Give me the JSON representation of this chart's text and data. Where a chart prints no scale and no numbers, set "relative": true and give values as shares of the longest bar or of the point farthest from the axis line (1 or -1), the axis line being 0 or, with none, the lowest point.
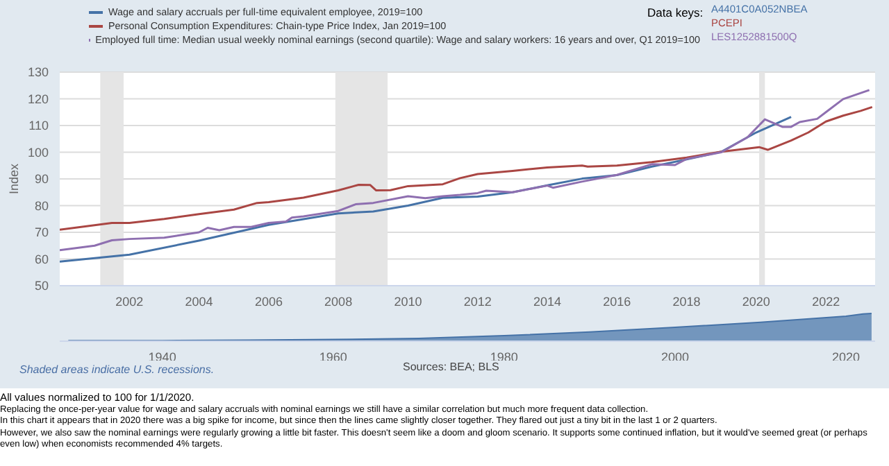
{
  "chart_data": [
    {
      "type": "line",
      "ylabel": "Index",
      "xlim": [
        "2000-01",
        "2023-06"
      ],
      "ylim": [
        50,
        130
      ],
      "yticks": [
        50,
        60,
        70,
        80,
        90,
        100,
        110,
        120,
        130
      ],
      "xticks": [
        "2002",
        "2004",
        "2006",
        "2008",
        "2010",
        "2012",
        "2014",
        "2016",
        "2018",
        "2020",
        "2022"
      ],
      "grid": "y",
      "legend": "top left",
      "marker": "none",
      "line_style": "solid",
      "bands": [
        {
          "axis": "x",
          "from": "2001-03",
          "to": "2001-11",
          "color": "#e5e5e5"
        },
        {
          "axis": "x",
          "from": "2007-12",
          "to": "2009-06",
          "color": "#e5e5e5"
        },
        {
          "axis": "x",
          "from": "2020-02",
          "to": "2020-04",
          "color": "#e5e5e5"
        }
      ],
      "series": [
        {
          "name": "Wage and salary accruals per full-time equivalent employee, 2019=100",
          "color": "#4572a7",
          "x": [
            "2000",
            "2002",
            "2004",
            "2006",
            "2008",
            "2009",
            "2010",
            "2011",
            "2012",
            "2013",
            "2014",
            "2015",
            "2016",
            "2017",
            "2018",
            "2019",
            "2020",
            "2021"
          ],
          "values": [
            59.0,
            61.6,
            66.9,
            72.8,
            77.1,
            77.8,
            80.0,
            82.9,
            83.4,
            85.0,
            87.6,
            90.1,
            91.4,
            94.6,
            97.3,
            100.2,
            107.4,
            113.2
          ]
        },
        {
          "name": "Personal Consumption Expenditures: Chain-type Price Index, Jan 2019=100",
          "color": "#aa4643",
          "x": [
            "2000-01",
            "2001-07",
            "2002-01",
            "2003-01",
            "2004-01",
            "2005-01",
            "2005-09",
            "2006-01",
            "2007-01",
            "2008-01",
            "2008-08",
            "2008-12",
            "2009-02",
            "2009-07",
            "2010-01",
            "2011-01",
            "2011-07",
            "2012-01",
            "2013-01",
            "2014-01",
            "2015-01",
            "2015-03",
            "2016-01",
            "2017-01",
            "2018-01",
            "2019-01",
            "2020-02",
            "2020-05",
            "2021-01",
            "2021-07",
            "2022-01",
            "2022-07",
            "2023-01",
            "2023-05"
          ],
          "values": [
            71.0,
            73.5,
            73.5,
            75.0,
            76.8,
            78.5,
            81.0,
            81.3,
            83.0,
            85.7,
            87.8,
            87.7,
            85.7,
            85.8,
            87.3,
            88.0,
            90.3,
            91.8,
            93.0,
            94.3,
            95.0,
            94.6,
            95.0,
            96.3,
            98.0,
            100.2,
            101.9,
            100.9,
            104.4,
            107.4,
            111.5,
            113.7,
            115.5,
            116.9
          ]
        },
        {
          "name": "Employed full time: Median usual weekly nominal earnings (second quartile): Wage and salary workers: 16 years and over, Q1 2019=100",
          "color": "#8e6fb0",
          "x": [
            "2000-01",
            "2001-01",
            "2001-07",
            "2002-01",
            "2003-01",
            "2004-01",
            "2004-04",
            "2004-08",
            "2005-01",
            "2005-07",
            "2006-01",
            "2006-07",
            "2006-09",
            "2007-01",
            "2008-01",
            "2008-07",
            "2009-01",
            "2010-01",
            "2010-07",
            "2011-01",
            "2011-07",
            "2012-01",
            "2012-04",
            "2013-01",
            "2014-01",
            "2014-03",
            "2015-01",
            "2016-01",
            "2017-01",
            "2017-09",
            "2018-01",
            "2019-01",
            "2019-10",
            "2020-04",
            "2020-10",
            "2021-01",
            "2021-04",
            "2021-10",
            "2022-01",
            "2022-07",
            "2023-04"
          ],
          "values": [
            63.3,
            65.0,
            67.0,
            67.5,
            68.0,
            70.0,
            71.7,
            70.8,
            72.0,
            72.0,
            73.5,
            74.0,
            75.5,
            76.0,
            78.0,
            80.5,
            81.0,
            83.5,
            82.8,
            83.5,
            84.0,
            84.7,
            85.6,
            85.0,
            87.5,
            86.7,
            89.0,
            91.5,
            95.5,
            95.2,
            97.5,
            100.0,
            105.6,
            112.3,
            109.5,
            109.5,
            111.3,
            112.5,
            115.0,
            119.9,
            123.3
          ]
        }
      ],
      "annotations": [
        "Data keys:",
        "A4401C0A052NBEA",
        "PCEPI",
        "LES1252881500Q",
        "Shaded areas indicate U.S. recessions.",
        "Sources: BEA; BLS",
        "All values normalized to 100 for 1/1/2020.",
        "Replacing the once-per-year value for wage and salary accruals with nominal earnings we still have a similar correlation but much more frequent data collection.",
        "In this chart it appears that in 2020 there was a big spike for income, but since then the lines came slightly closer together. They flared out just a tiny bit in the last 1 or 2 quarters.",
        "However, we also saw the nominal earnings were regularly growing a little bit faster. This doesn't seem like a doom and gloom scenario. It supports some continued inflation, but it would've seemed great (or perhaps even low) when economists recommended 4% targets."
      ]
    },
    {
      "type": "area",
      "relative": true,
      "xlim": [
        "1928-01",
        "2023-06"
      ],
      "xticks": [
        "1940",
        "1960",
        "1980",
        "2000",
        "2020"
      ],
      "tick_labels": "x",
      "series": [
        {
          "color": "#4572a7",
          "x": [
            "1929",
            "1940",
            "1950",
            "1960",
            "1970",
            "1980",
            "1990",
            "2000",
            "2010",
            "2020",
            "2022",
            "2023"
          ],
          "values": [
            0.02,
            0.02,
            0.04,
            0.06,
            0.1,
            0.2,
            0.33,
            0.5,
            0.68,
            0.9,
            0.98,
            1
          ]
        }
      ]
    }
  ]
}
